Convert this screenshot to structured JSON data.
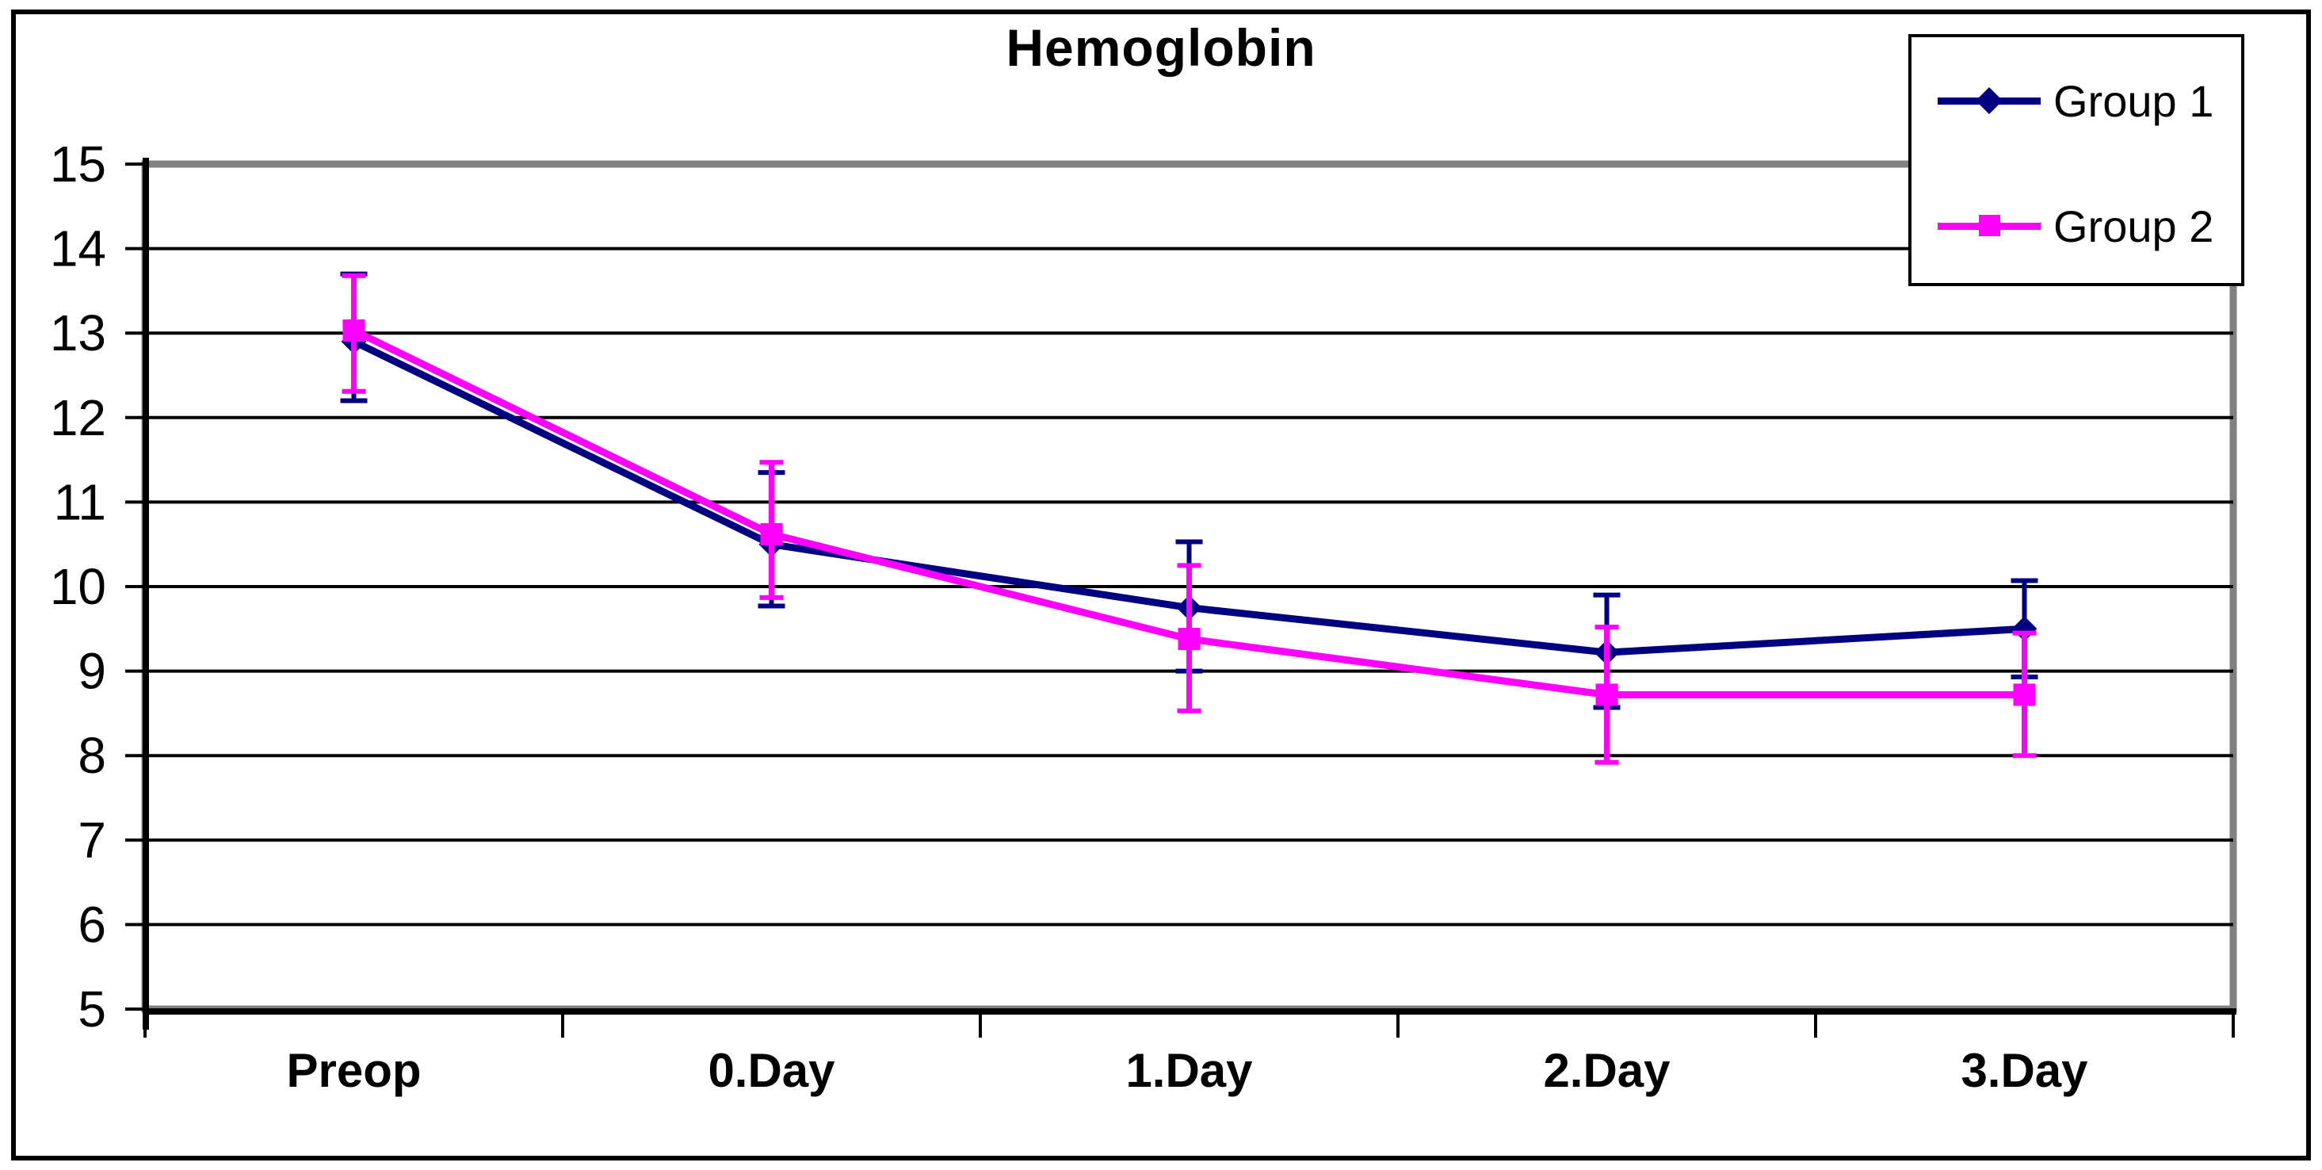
{
  "chart_data": {
    "type": "line",
    "title": "Hemoglobin",
    "xlabel": "",
    "ylabel": "",
    "categories": [
      "Preop",
      "0.Day",
      "1.Day",
      "2.Day",
      "3.Day"
    ],
    "ylim": [
      5,
      15
    ],
    "ytick_step": 1,
    "yticks": [
      5,
      6,
      7,
      8,
      9,
      10,
      11,
      12,
      13,
      14,
      15
    ],
    "grid": "horizontal",
    "legend_position": "top-right",
    "background": "#FFFFFF",
    "colors": {
      "gridline": "#000000",
      "axis": "#000000",
      "plot_border_shadow": "#808080",
      "figure_border": "#000000"
    },
    "series": [
      {
        "name": "Group 1",
        "color": "#000080",
        "marker": "diamond",
        "values": [
          12.9,
          10.5,
          9.75,
          9.22,
          9.5
        ],
        "error_plus": [
          0.8,
          0.85,
          0.78,
          0.68,
          0.57
        ],
        "error_minus": [
          0.7,
          0.73,
          0.75,
          0.65,
          0.57
        ]
      },
      {
        "name": "Group 2",
        "color": "#FF00FF",
        "marker": "square",
        "values": [
          13.03,
          10.62,
          9.38,
          8.72,
          8.72
        ],
        "error_plus": [
          0.65,
          0.85,
          0.87,
          0.8,
          0.73
        ],
        "error_minus": [
          0.72,
          0.75,
          0.85,
          0.8,
          0.72
        ]
      }
    ]
  }
}
